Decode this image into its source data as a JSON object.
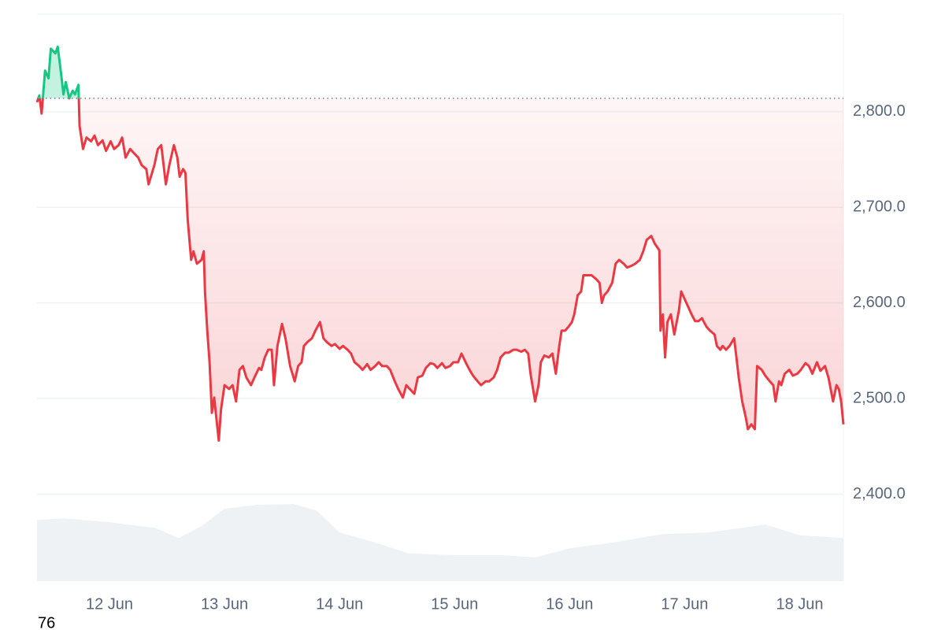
{
  "chart_data": {
    "type": "price-line",
    "x": [
      11.37,
      11.39,
      11.41,
      11.44,
      11.47,
      11.49,
      11.53,
      11.55,
      11.58,
      11.6,
      11.62,
      11.65,
      11.68,
      11.7,
      11.73,
      11.74,
      11.77,
      11.8,
      11.84,
      11.87,
      11.9,
      11.94,
      11.97,
      12.01,
      12.04,
      12.08,
      12.11,
      12.14,
      12.18,
      12.21,
      12.25,
      12.28,
      12.32,
      12.34,
      12.36,
      12.39,
      12.42,
      12.45,
      12.49,
      12.52,
      12.56,
      12.59,
      12.61,
      12.64,
      12.66,
      12.68,
      12.71,
      12.73,
      12.76,
      12.8,
      12.82,
      12.83,
      12.85,
      12.87,
      12.89,
      12.91,
      12.95,
      12.97,
      13.0,
      13.04,
      13.07,
      13.1,
      13.13,
      13.16,
      13.19,
      13.23,
      13.26,
      13.3,
      13.32,
      13.35,
      13.38,
      13.41,
      13.43,
      13.46,
      13.5,
      13.53,
      13.57,
      13.61,
      13.64,
      13.67,
      13.69,
      13.72,
      13.76,
      13.79,
      13.83,
      13.86,
      13.89,
      13.93,
      13.96,
      14.0,
      14.03,
      14.07,
      14.1,
      14.13,
      14.17,
      14.2,
      14.24,
      14.27,
      14.31,
      14.34,
      14.37,
      14.41,
      14.44,
      14.48,
      14.51,
      14.55,
      14.58,
      14.61,
      14.65,
      14.68,
      14.72,
      14.75,
      14.79,
      14.82,
      14.85,
      14.89,
      14.92,
      14.96,
      14.99,
      15.03,
      15.06,
      15.1,
      15.13,
      15.16,
      15.2,
      15.23,
      15.27,
      15.3,
      15.34,
      15.37,
      15.4,
      15.44,
      15.47,
      15.51,
      15.54,
      15.58,
      15.61,
      15.64,
      15.66,
      15.7,
      15.73,
      15.75,
      15.78,
      15.82,
      15.85,
      15.88,
      15.91,
      15.93,
      15.96,
      15.99,
      16.02,
      16.04,
      16.07,
      16.1,
      16.12,
      16.16,
      16.19,
      16.23,
      16.26,
      16.28,
      16.3,
      16.33,
      16.37,
      16.4,
      16.43,
      16.47,
      16.5,
      16.54,
      16.57,
      16.61,
      16.64,
      16.67,
      16.71,
      16.74,
      16.78,
      16.79,
      16.81,
      16.83,
      16.85,
      16.88,
      16.91,
      16.95,
      16.97,
      17.0,
      17.03,
      17.06,
      17.09,
      17.12,
      17.15,
      17.19,
      17.22,
      17.26,
      17.28,
      17.31,
      17.33,
      17.36,
      17.39,
      17.43,
      17.45,
      17.47,
      17.5,
      17.53,
      17.55,
      17.58,
      17.61,
      17.63,
      17.67,
      17.7,
      17.74,
      17.77,
      17.79,
      17.82,
      17.84,
      17.87,
      17.91,
      17.94,
      17.98,
      18.01,
      18.05,
      18.08,
      18.11,
      18.15,
      18.18,
      18.22,
      18.25,
      18.29,
      18.32,
      18.34,
      18.36,
      18.38
    ],
    "values": [
      2810,
      2817,
      2798,
      2843,
      2835,
      2866,
      2861,
      2868,
      2839,
      2818,
      2831,
      2814,
      2822,
      2818,
      2828,
      2785,
      2761,
      2773,
      2769,
      2775,
      2765,
      2770,
      2759,
      2769,
      2761,
      2765,
      2773,
      2752,
      2761,
      2757,
      2752,
      2744,
      2740,
      2724,
      2732,
      2744,
      2761,
      2765,
      2724,
      2744,
      2765,
      2752,
      2732,
      2740,
      2736,
      2687,
      2645,
      2654,
      2641,
      2645,
      2654,
      2612,
      2571,
      2538,
      2485,
      2501,
      2456,
      2489,
      2514,
      2510,
      2514,
      2497,
      2530,
      2534,
      2522,
      2514,
      2522,
      2532,
      2530,
      2543,
      2551,
      2551,
      2514,
      2555,
      2578,
      2563,
      2534,
      2518,
      2534,
      2538,
      2555,
      2559,
      2563,
      2571,
      2580,
      2563,
      2559,
      2555,
      2557,
      2552,
      2555,
      2551,
      2547,
      2538,
      2534,
      2530,
      2536,
      2530,
      2534,
      2538,
      2534,
      2534,
      2530,
      2518,
      2510,
      2501,
      2514,
      2510,
      2505,
      2522,
      2524,
      2532,
      2537,
      2536,
      2532,
      2537,
      2532,
      2534,
      2538,
      2538,
      2547,
      2537,
      2530,
      2524,
      2518,
      2514,
      2518,
      2518,
      2522,
      2530,
      2543,
      2548,
      2548,
      2551,
      2551,
      2549,
      2551,
      2547,
      2526,
      2497,
      2514,
      2538,
      2545,
      2543,
      2547,
      2526,
      2555,
      2571,
      2571,
      2575,
      2580,
      2588,
      2608,
      2612,
      2629,
      2629,
      2629,
      2625,
      2621,
      2600,
      2608,
      2612,
      2621,
      2641,
      2645,
      2641,
      2637,
      2639,
      2641,
      2645,
      2654,
      2666,
      2670,
      2662,
      2655,
      2571,
      2588,
      2543,
      2580,
      2588,
      2567,
      2592,
      2612,
      2604,
      2596,
      2588,
      2581,
      2581,
      2584,
      2575,
      2571,
      2567,
      2555,
      2551,
      2555,
      2551,
      2555,
      2563,
      2543,
      2522,
      2497,
      2481,
      2468,
      2473,
      2468,
      2534,
      2530,
      2524,
      2518,
      2514,
      2497,
      2518,
      2514,
      2526,
      2530,
      2524,
      2526,
      2530,
      2537,
      2534,
      2526,
      2538,
      2529,
      2534,
      2522,
      2497,
      2514,
      2510,
      2497,
      2473
    ],
    "baseline": 2814,
    "up_color": "#16c784",
    "down_color": "#ea3943",
    "volume": {
      "x": [
        11.37,
        11.6,
        12.0,
        12.4,
        12.6,
        12.8,
        13.0,
        13.3,
        13.6,
        13.8,
        14.0,
        14.3,
        14.6,
        15.0,
        15.4,
        15.7,
        16.0,
        16.4,
        16.8,
        17.2,
        17.5,
        17.7,
        18.0,
        18.38
      ],
      "values": [
        10.8,
        11.1,
        10.4,
        9.4,
        7.6,
        9.7,
        12.8,
        13.5,
        13.6,
        12.5,
        8.6,
        6.9,
        4.9,
        4.6,
        4.6,
        4.2,
        5.8,
        6.9,
        8.3,
        8.6,
        9.4,
        10,
        8.1,
        7.6
      ],
      "ylim": [
        0,
        100
      ],
      "color": "#eff2f5"
    },
    "xlim": [
      11.37,
      18.38
    ],
    "xticks": [
      {
        "value": 12,
        "label": "12 Jun"
      },
      {
        "value": 13,
        "label": "13 Jun"
      },
      {
        "value": 14,
        "label": "14 Jun"
      },
      {
        "value": 15,
        "label": "15 Jun"
      },
      {
        "value": 16,
        "label": "16 Jun"
      },
      {
        "value": 17,
        "label": "17 Jun"
      },
      {
        "value": 18,
        "label": "18 Jun"
      }
    ],
    "ylim": [
      2309,
      2902
    ],
    "yticks": [
      {
        "value": 2400,
        "label": "2,400.0"
      },
      {
        "value": 2500,
        "label": "2,500.0"
      },
      {
        "value": 2600,
        "label": "2,600.0"
      },
      {
        "value": 2700,
        "label": "2,700.0"
      },
      {
        "value": 2800,
        "label": "2,800.0"
      }
    ],
    "grid": true,
    "footer_text": "76"
  }
}
